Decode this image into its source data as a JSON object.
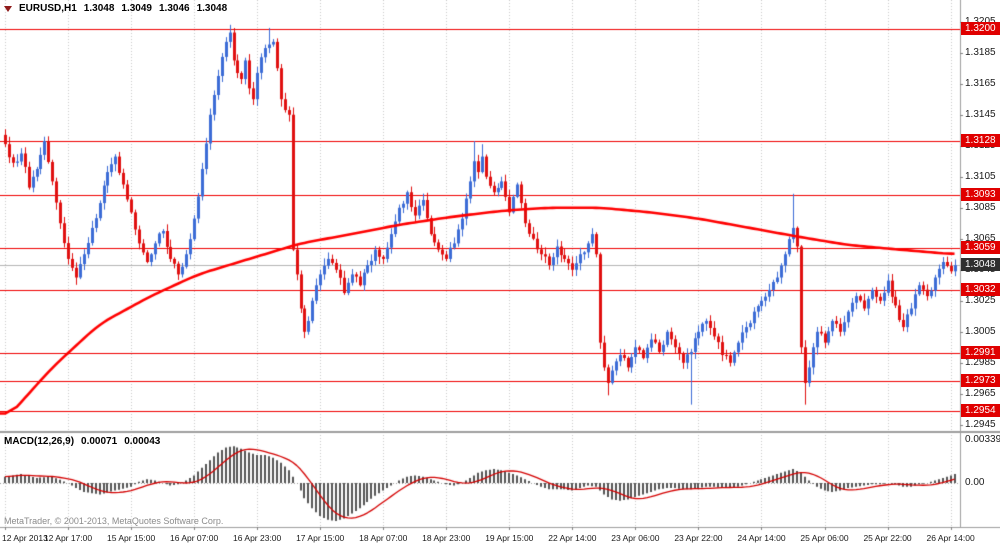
{
  "legend": {
    "symbol": "EURUSD,H1",
    "open": "1.3048",
    "high": "1.3049",
    "low": "1.3046",
    "close": "1.3048"
  },
  "macd_legend": {
    "name": "MACD(12,26,9)",
    "value": "0.00071",
    "signal": "0.00043"
  },
  "footer": {
    "copyright": "MetaTrader, © 2001-2013, MetaQuotes Software Corp."
  },
  "colors": {
    "up": "#3c6cd6",
    "down": "#e01010",
    "ma": "#ff0000",
    "level_line": "#f00000",
    "level_badge": "#e00000",
    "current_badge": "#2f2f2f",
    "hist": "#555555",
    "signal": "#d40000",
    "grid": "#c9c9c9",
    "border": "#9e9e9e",
    "bid_line": "#b4b4b4"
  },
  "chart_data": {
    "type": "candlestick",
    "symbol": "EURUSD",
    "timeframe": "H1",
    "title": "EURUSD,H1 with red SMA, horizontal support/resistance levels and MACD(12,26,9) subwindow",
    "ohlc": [
      1.3048,
      1.3049,
      1.3046,
      1.3048
    ],
    "price_axis": {
      "max": 1.3219,
      "min": 1.2941,
      "ticks": [
        "1.3205",
        "1.3185",
        "1.3165",
        "1.3145",
        "1.3125",
        "1.3105",
        "1.3085",
        "1.3065",
        "1.3045",
        "1.3025",
        "1.3005",
        "1.2985",
        "1.2965",
        "1.2945"
      ]
    },
    "time_labels": [
      "12 Apr 2013",
      "12 Apr 17:00",
      "15 Apr 15:00",
      "16 Apr 07:00",
      "16 Apr 23:00",
      "17 Apr 15:00",
      "18 Apr 07:00",
      "18 Apr 23:00",
      "19 Apr 15:00",
      "22 Apr 14:00",
      "23 Apr 06:00",
      "23 Apr 22:00",
      "24 Apr 14:00",
      "25 Apr 06:00",
      "25 Apr 22:00",
      "26 Apr 14:00"
    ],
    "bars_per_gridline": 16,
    "levels": [
      "1.3200",
      "1.3128",
      "1.3093",
      "1.3059",
      "1.3032",
      "1.2991",
      "1.2973",
      "1.2954"
    ],
    "current_price": "1.3048",
    "candles": {
      "count": 242,
      "seed": 7,
      "jitter": 0.00025,
      "close_waypoints": [
        [
          0,
          1.3126
        ],
        [
          2,
          1.3114
        ],
        [
          4,
          1.312
        ],
        [
          6,
          1.3098
        ],
        [
          8,
          1.311
        ],
        [
          10,
          1.3128
        ],
        [
          12,
          1.3102
        ],
        [
          14,
          1.3075
        ],
        [
          16,
          1.3052
        ],
        [
          18,
          1.304
        ],
        [
          20,
          1.3055
        ],
        [
          22,
          1.3072
        ],
        [
          24,
          1.3088
        ],
        [
          26,
          1.3108
        ],
        [
          28,
          1.3118
        ],
        [
          30,
          1.31
        ],
        [
          32,
          1.3082
        ],
        [
          34,
          1.3062
        ],
        [
          36,
          1.305
        ],
        [
          38,
          1.3062
        ],
        [
          40,
          1.307
        ],
        [
          42,
          1.3052
        ],
        [
          44,
          1.3042
        ],
        [
          46,
          1.3055
        ],
        [
          48,
          1.3078
        ],
        [
          50,
          1.311
        ],
        [
          52,
          1.3145
        ],
        [
          54,
          1.317
        ],
        [
          56,
          1.3192
        ],
        [
          57,
          1.3198
        ],
        [
          58,
          1.318
        ],
        [
          60,
          1.3168
        ],
        [
          61,
          1.318
        ],
        [
          62,
          1.3162
        ],
        [
          63,
          1.3155
        ],
        [
          64,
          1.3172
        ],
        [
          66,
          1.3188
        ],
        [
          68,
          1.3192
        ],
        [
          69,
          1.3175
        ],
        [
          70,
          1.3155
        ],
        [
          71,
          1.3148
        ],
        [
          72,
          1.3145
        ],
        [
          73,
          1.3058
        ],
        [
          74,
          1.3042
        ],
        [
          75,
          1.302
        ],
        [
          76,
          1.3005
        ],
        [
          77,
          1.3012
        ],
        [
          78,
          1.3025
        ],
        [
          79,
          1.3035
        ],
        [
          80,
          1.3042
        ],
        [
          82,
          1.3052
        ],
        [
          84,
          1.3045
        ],
        [
          86,
          1.303
        ],
        [
          88,
          1.3042
        ],
        [
          90,
          1.3035
        ],
        [
          92,
          1.3048
        ],
        [
          94,
          1.3058
        ],
        [
          96,
          1.3052
        ],
        [
          98,
          1.3068
        ],
        [
          100,
          1.3085
        ],
        [
          102,
          1.3095
        ],
        [
          104,
          1.308
        ],
        [
          106,
          1.309
        ],
        [
          108,
          1.3068
        ],
        [
          110,
          1.3058
        ],
        [
          112,
          1.3052
        ],
        [
          114,
          1.3062
        ],
        [
          116,
          1.3078
        ],
        [
          118,
          1.3102
        ],
        [
          119,
          1.3115
        ],
        [
          120,
          1.3108
        ],
        [
          121,
          1.3118
        ],
        [
          122,
          1.3105
        ],
        [
          124,
          1.3095
        ],
        [
          126,
          1.3102
        ],
        [
          127,
          1.3092
        ],
        [
          128,
          1.3082
        ],
        [
          129,
          1.3092
        ],
        [
          130,
          1.31
        ],
        [
          131,
          1.3088
        ],
        [
          132,
          1.3075
        ],
        [
          134,
          1.3065
        ],
        [
          136,
          1.3055
        ],
        [
          138,
          1.3048
        ],
        [
          140,
          1.306
        ],
        [
          142,
          1.3052
        ],
        [
          144,
          1.3045
        ],
        [
          146,
          1.3055
        ],
        [
          148,
          1.3062
        ],
        [
          149,
          1.3068
        ],
        [
          150,
          1.3055
        ],
        [
          151,
          1.2998
        ],
        [
          152,
          1.2982
        ],
        [
          153,
          1.2972
        ],
        [
          154,
          1.298
        ],
        [
          156,
          1.299
        ],
        [
          158,
          1.2982
        ],
        [
          160,
          1.2995
        ],
        [
          162,
          1.2988
        ],
        [
          164,
          1.3
        ],
        [
          166,
          1.2992
        ],
        [
          168,
          1.3005
        ],
        [
          170,
          1.2995
        ],
        [
          172,
          1.2985
        ],
        [
          174,
          1.2992
        ],
        [
          176,
          1.3005
        ],
        [
          178,
          1.3012
        ],
        [
          180,
          1.3002
        ],
        [
          182,
          1.299
        ],
        [
          184,
          1.2985
        ],
        [
          186,
          1.2998
        ],
        [
          188,
          1.3008
        ],
        [
          190,
          1.3018
        ],
        [
          192,
          1.3025
        ],
        [
          194,
          1.3032
        ],
        [
          196,
          1.304
        ],
        [
          198,
          1.3055
        ],
        [
          200,
          1.3072
        ],
        [
          201,
          1.306
        ],
        [
          202,
          1.2995
        ],
        [
          203,
          1.2972
        ],
        [
          204,
          1.2982
        ],
        [
          205,
          1.2995
        ],
        [
          206,
          1.3005
        ],
        [
          208,
          1.2998
        ],
        [
          210,
          1.3012
        ],
        [
          212,
          1.3005
        ],
        [
          214,
          1.3018
        ],
        [
          216,
          1.3028
        ],
        [
          218,
          1.302
        ],
        [
          220,
          1.3032
        ],
        [
          222,
          1.3025
        ],
        [
          224,
          1.3038
        ],
        [
          226,
          1.3022
        ],
        [
          228,
          1.3008
        ],
        [
          230,
          1.302
        ],
        [
          232,
          1.3035
        ],
        [
          234,
          1.3028
        ],
        [
          236,
          1.304
        ],
        [
          238,
          1.305
        ],
        [
          240,
          1.3044
        ],
        [
          241,
          1.3048
        ]
      ]
    },
    "wick_extremes": [
      {
        "i": 57,
        "high": 1.3203
      },
      {
        "i": 67,
        "high": 1.3201
      },
      {
        "i": 119,
        "high": 1.3128
      },
      {
        "i": 121,
        "high": 1.3126
      },
      {
        "i": 200,
        "high": 1.3094
      },
      {
        "i": 153,
        "low": 1.2964
      },
      {
        "i": 174,
        "low": 1.2958
      },
      {
        "i": 203,
        "low": 1.2958
      }
    ],
    "ma": {
      "type": "SMA",
      "waypoints": [
        [
          0,
          1.2948
        ],
        [
          12,
          1.2982
        ],
        [
          24,
          1.301
        ],
        [
          37,
          1.3028
        ],
        [
          49,
          1.3042
        ],
        [
          62,
          1.3052
        ],
        [
          75,
          1.3062
        ],
        [
          88,
          1.3068
        ],
        [
          100,
          1.3074
        ],
        [
          113,
          1.3079
        ],
        [
          126,
          1.3083
        ],
        [
          138,
          1.3085
        ],
        [
          151,
          1.3085
        ],
        [
          164,
          1.3082
        ],
        [
          176,
          1.3078
        ],
        [
          189,
          1.3072
        ],
        [
          202,
          1.3066
        ],
        [
          214,
          1.3061
        ],
        [
          227,
          1.3058
        ],
        [
          241,
          1.3055
        ]
      ]
    },
    "macd": {
      "params": "12,26,9",
      "axis_labels": [
        "0.00339",
        "0.00"
      ],
      "scale_max": 0.00339,
      "signal_period": 9,
      "hist_waypoints": [
        [
          0,
          0.0005
        ],
        [
          4,
          0.0007
        ],
        [
          8,
          0.0004
        ],
        [
          12,
          0.0005
        ],
        [
          16,
          0.0
        ],
        [
          18,
          -0.0004
        ],
        [
          20,
          -0.0007
        ],
        [
          24,
          -0.0009
        ],
        [
          28,
          -0.0006
        ],
        [
          32,
          -0.0003
        ],
        [
          34,
          0.0001
        ],
        [
          36,
          0.0003
        ],
        [
          38,
          0.0002
        ],
        [
          40,
          0.0
        ],
        [
          42,
          -0.0002
        ],
        [
          44,
          -0.0001
        ],
        [
          46,
          0.0002
        ],
        [
          48,
          0.0006
        ],
        [
          50,
          0.0012
        ],
        [
          52,
          0.0018
        ],
        [
          54,
          0.0024
        ],
        [
          56,
          0.0028
        ],
        [
          58,
          0.0029
        ],
        [
          60,
          0.0027
        ],
        [
          62,
          0.0024
        ],
        [
          64,
          0.0022
        ],
        [
          66,
          0.0022
        ],
        [
          68,
          0.002
        ],
        [
          70,
          0.0016
        ],
        [
          72,
          0.001
        ],
        [
          74,
          0.0
        ],
        [
          76,
          -0.0012
        ],
        [
          78,
          -0.002
        ],
        [
          80,
          -0.0026
        ],
        [
          82,
          -0.0029
        ],
        [
          84,
          -0.003
        ],
        [
          86,
          -0.0028
        ],
        [
          88,
          -0.0024
        ],
        [
          90,
          -0.002
        ],
        [
          92,
          -0.0015
        ],
        [
          94,
          -0.001
        ],
        [
          96,
          -0.0006
        ],
        [
          98,
          -0.0002
        ],
        [
          100,
          0.0002
        ],
        [
          102,
          0.0005
        ],
        [
          104,
          0.0006
        ],
        [
          106,
          0.0005
        ],
        [
          108,
          0.0003
        ],
        [
          110,
          0.0001
        ],
        [
          112,
          -0.0001
        ],
        [
          114,
          -0.0002
        ],
        [
          116,
          0.0
        ],
        [
          118,
          0.0004
        ],
        [
          120,
          0.0008
        ],
        [
          122,
          0.001
        ],
        [
          124,
          0.0011
        ],
        [
          126,
          0.001
        ],
        [
          128,
          0.0008
        ],
        [
          130,
          0.0006
        ],
        [
          132,
          0.0003
        ],
        [
          134,
          0.0
        ],
        [
          136,
          -0.0003
        ],
        [
          138,
          -0.0005
        ],
        [
          140,
          -0.0005
        ],
        [
          142,
          -0.0005
        ],
        [
          144,
          -0.0006
        ],
        [
          146,
          -0.0004
        ],
        [
          148,
          -0.0002
        ],
        [
          150,
          -0.0003
        ],
        [
          152,
          -0.0009
        ],
        [
          154,
          -0.0013
        ],
        [
          156,
          -0.0014
        ],
        [
          158,
          -0.0013
        ],
        [
          160,
          -0.0011
        ],
        [
          162,
          -0.0009
        ],
        [
          164,
          -0.0007
        ],
        [
          166,
          -0.0005
        ],
        [
          168,
          -0.0004
        ],
        [
          170,
          -0.0004
        ],
        [
          172,
          -0.0005
        ],
        [
          174,
          -0.0005
        ],
        [
          176,
          -0.0004
        ],
        [
          178,
          -0.0003
        ],
        [
          180,
          -0.0003
        ],
        [
          182,
          -0.0004
        ],
        [
          184,
          -0.0004
        ],
        [
          186,
          -0.0003
        ],
        [
          188,
          -0.0001
        ],
        [
          190,
          0.0001
        ],
        [
          192,
          0.0003
        ],
        [
          194,
          0.0005
        ],
        [
          196,
          0.0007
        ],
        [
          198,
          0.0009
        ],
        [
          200,
          0.0011
        ],
        [
          202,
          0.0008
        ],
        [
          204,
          0.0002
        ],
        [
          206,
          -0.0003
        ],
        [
          208,
          -0.0006
        ],
        [
          210,
          -0.0007
        ],
        [
          212,
          -0.0006
        ],
        [
          214,
          -0.0004
        ],
        [
          216,
          -0.0003
        ],
        [
          218,
          -0.0002
        ],
        [
          220,
          -0.0001
        ],
        [
          222,
          -0.0001
        ],
        [
          224,
          0.0
        ],
        [
          226,
          -0.0001
        ],
        [
          228,
          -0.0003
        ],
        [
          230,
          -0.0003
        ],
        [
          232,
          -0.0001
        ],
        [
          234,
          0.0
        ],
        [
          236,
          0.0002
        ],
        [
          238,
          0.0004
        ],
        [
          240,
          0.0006
        ],
        [
          241,
          0.0007
        ]
      ]
    }
  }
}
